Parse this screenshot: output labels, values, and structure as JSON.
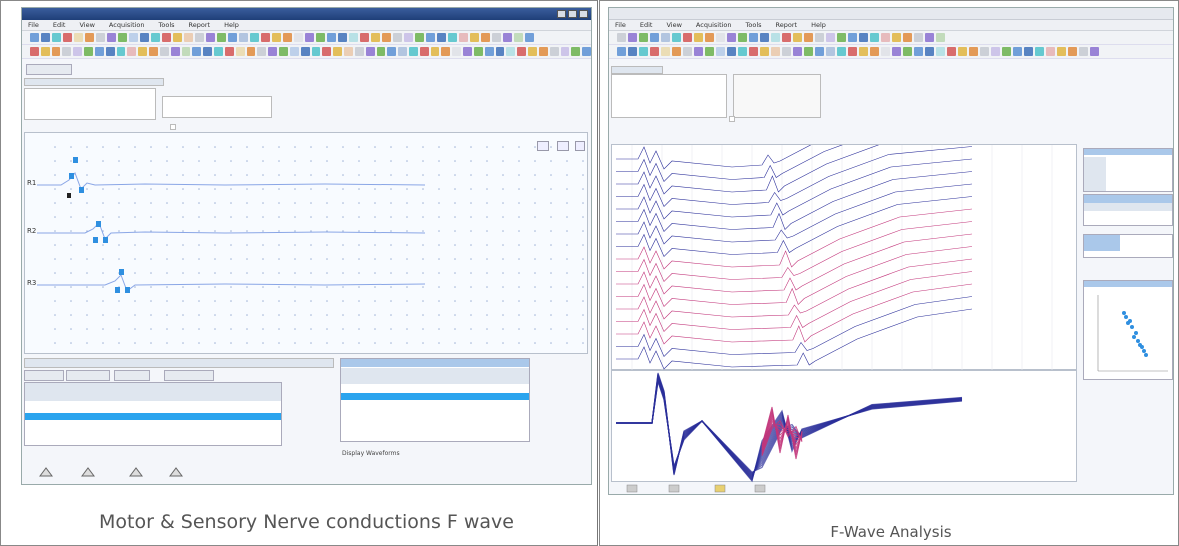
{
  "left": {
    "caption": "Motor & Sensory Nerve conductions F wave",
    "menu": [
      "File",
      "Edit",
      "View",
      "Acquisition",
      "Tools",
      "Report",
      "Help"
    ],
    "traces": [
      "R1",
      "R2",
      "R3"
    ],
    "checkbox_label": "Display Waveforms"
  },
  "right": {
    "caption": "F-Wave Analysis",
    "menu": [
      "File",
      "Edit",
      "View",
      "Acquisition",
      "Tools",
      "Report",
      "Help"
    ],
    "trace_count": 17
  },
  "colors": {
    "trace_blue": "#8aa6e6",
    "trace_dark_blue": "#2b2f9a",
    "f_wave_red": "#c2357a",
    "selection": "#2aa4ee",
    "marker_blue": "#2f8fe0"
  }
}
